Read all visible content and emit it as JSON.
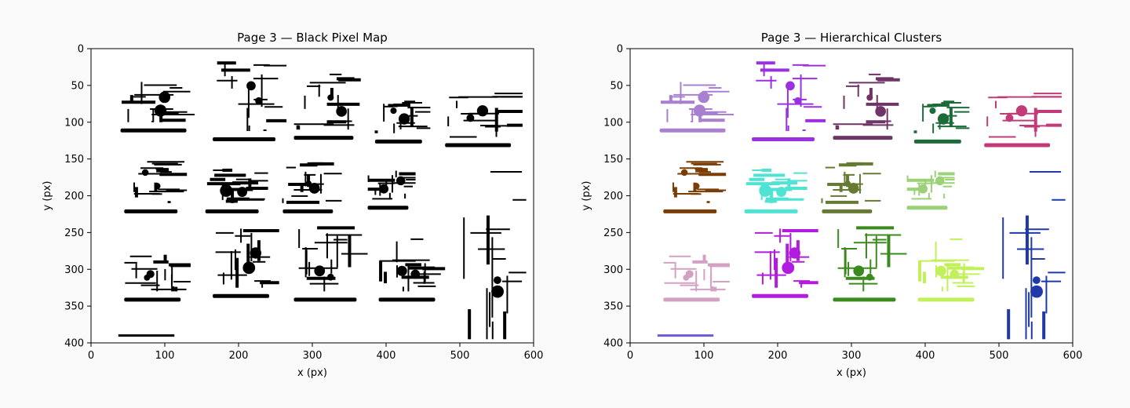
{
  "chart_data": [
    {
      "type": "scatter",
      "title": "Page 3 — Black Pixel Map",
      "xlabel": "x (px)",
      "ylabel": "y (px)",
      "xlim": [
        0,
        600
      ],
      "ylim": [
        400,
        0
      ],
      "x_ticks": [
        0,
        100,
        200,
        300,
        400,
        500,
        600
      ],
      "y_ticks": [
        0,
        50,
        100,
        150,
        200,
        250,
        300,
        350,
        400
      ],
      "grid": false,
      "point_color": "#000000",
      "description_of_content": "binary pixel map of schematic symbols",
      "regions": [
        {
          "x": [
            40,
            145
          ],
          "y": [
            40,
            100
          ]
        },
        {
          "x": [
            165,
            265
          ],
          "y": [
            18,
            112
          ]
        },
        {
          "x": [
            275,
            370
          ],
          "y": [
            30,
            110
          ]
        },
        {
          "x": [
            385,
            460
          ],
          "y": [
            70,
            115
          ]
        },
        {
          "x": [
            480,
            585
          ],
          "y": [
            55,
            120
          ]
        },
        {
          "x": [
            45,
            130
          ],
          "y": [
            150,
            210
          ]
        },
        {
          "x": [
            155,
            240
          ],
          "y": [
            165,
            210
          ]
        },
        {
          "x": [
            260,
            340
          ],
          "y": [
            155,
            210
          ]
        },
        {
          "x": [
            375,
            440
          ],
          "y": [
            165,
            205
          ]
        },
        {
          "x": [
            505,
            590
          ],
          "y": [
            165,
            395
          ]
        },
        {
          "x": [
            45,
            135
          ],
          "y": [
            275,
            330
          ]
        },
        {
          "x": [
            165,
            255
          ],
          "y": [
            243,
            325
          ]
        },
        {
          "x": [
            275,
            375
          ],
          "y": [
            243,
            330
          ]
        },
        {
          "x": [
            390,
            480
          ],
          "y": [
            255,
            330
          ]
        }
      ]
    },
    {
      "type": "scatter",
      "title": "Page 3 — Hierarchical Clusters",
      "xlabel": "x (px)",
      "ylabel": "y (px)",
      "xlim": [
        0,
        600
      ],
      "ylim": [
        400,
        0
      ],
      "x_ticks": [
        0,
        100,
        200,
        300,
        400,
        500,
        600
      ],
      "y_ticks": [
        0,
        50,
        100,
        150,
        200,
        250,
        300,
        350,
        400
      ],
      "grid": false,
      "clusters": [
        {
          "color": "#a97fd0",
          "x": [
            40,
            145
          ],
          "y": [
            40,
            100
          ]
        },
        {
          "color": "#9b30e0",
          "x": [
            165,
            265
          ],
          "y": [
            18,
            112
          ]
        },
        {
          "color": "#6e3566",
          "x": [
            275,
            370
          ],
          "y": [
            30,
            110
          ]
        },
        {
          "color": "#1e6b3a",
          "x": [
            385,
            460
          ],
          "y": [
            70,
            115
          ]
        },
        {
          "color": "#c23b78",
          "x": [
            480,
            585
          ],
          "y": [
            55,
            120
          ]
        },
        {
          "color": "#7a3d05",
          "x": [
            45,
            130
          ],
          "y": [
            150,
            210
          ]
        },
        {
          "color": "#4fe3d3",
          "x": [
            155,
            240
          ],
          "y": [
            165,
            210
          ]
        },
        {
          "color": "#667a33",
          "x": [
            260,
            340
          ],
          "y": [
            155,
            210
          ]
        },
        {
          "color": "#9bd177",
          "x": [
            375,
            440
          ],
          "y": [
            165,
            205
          ]
        },
        {
          "color": "#1f3aa8",
          "x": [
            505,
            590
          ],
          "y": [
            165,
            395
          ]
        },
        {
          "color": "#d3a2c3",
          "x": [
            45,
            135
          ],
          "y": [
            275,
            330
          ]
        },
        {
          "color": "#b21be0",
          "x": [
            165,
            255
          ],
          "y": [
            243,
            325
          ]
        },
        {
          "color": "#3a8a1e",
          "x": [
            275,
            375
          ],
          "y": [
            243,
            330
          ]
        },
        {
          "color": "#c2f05a",
          "x": [
            390,
            480
          ],
          "y": [
            255,
            330
          ]
        }
      ]
    }
  ]
}
